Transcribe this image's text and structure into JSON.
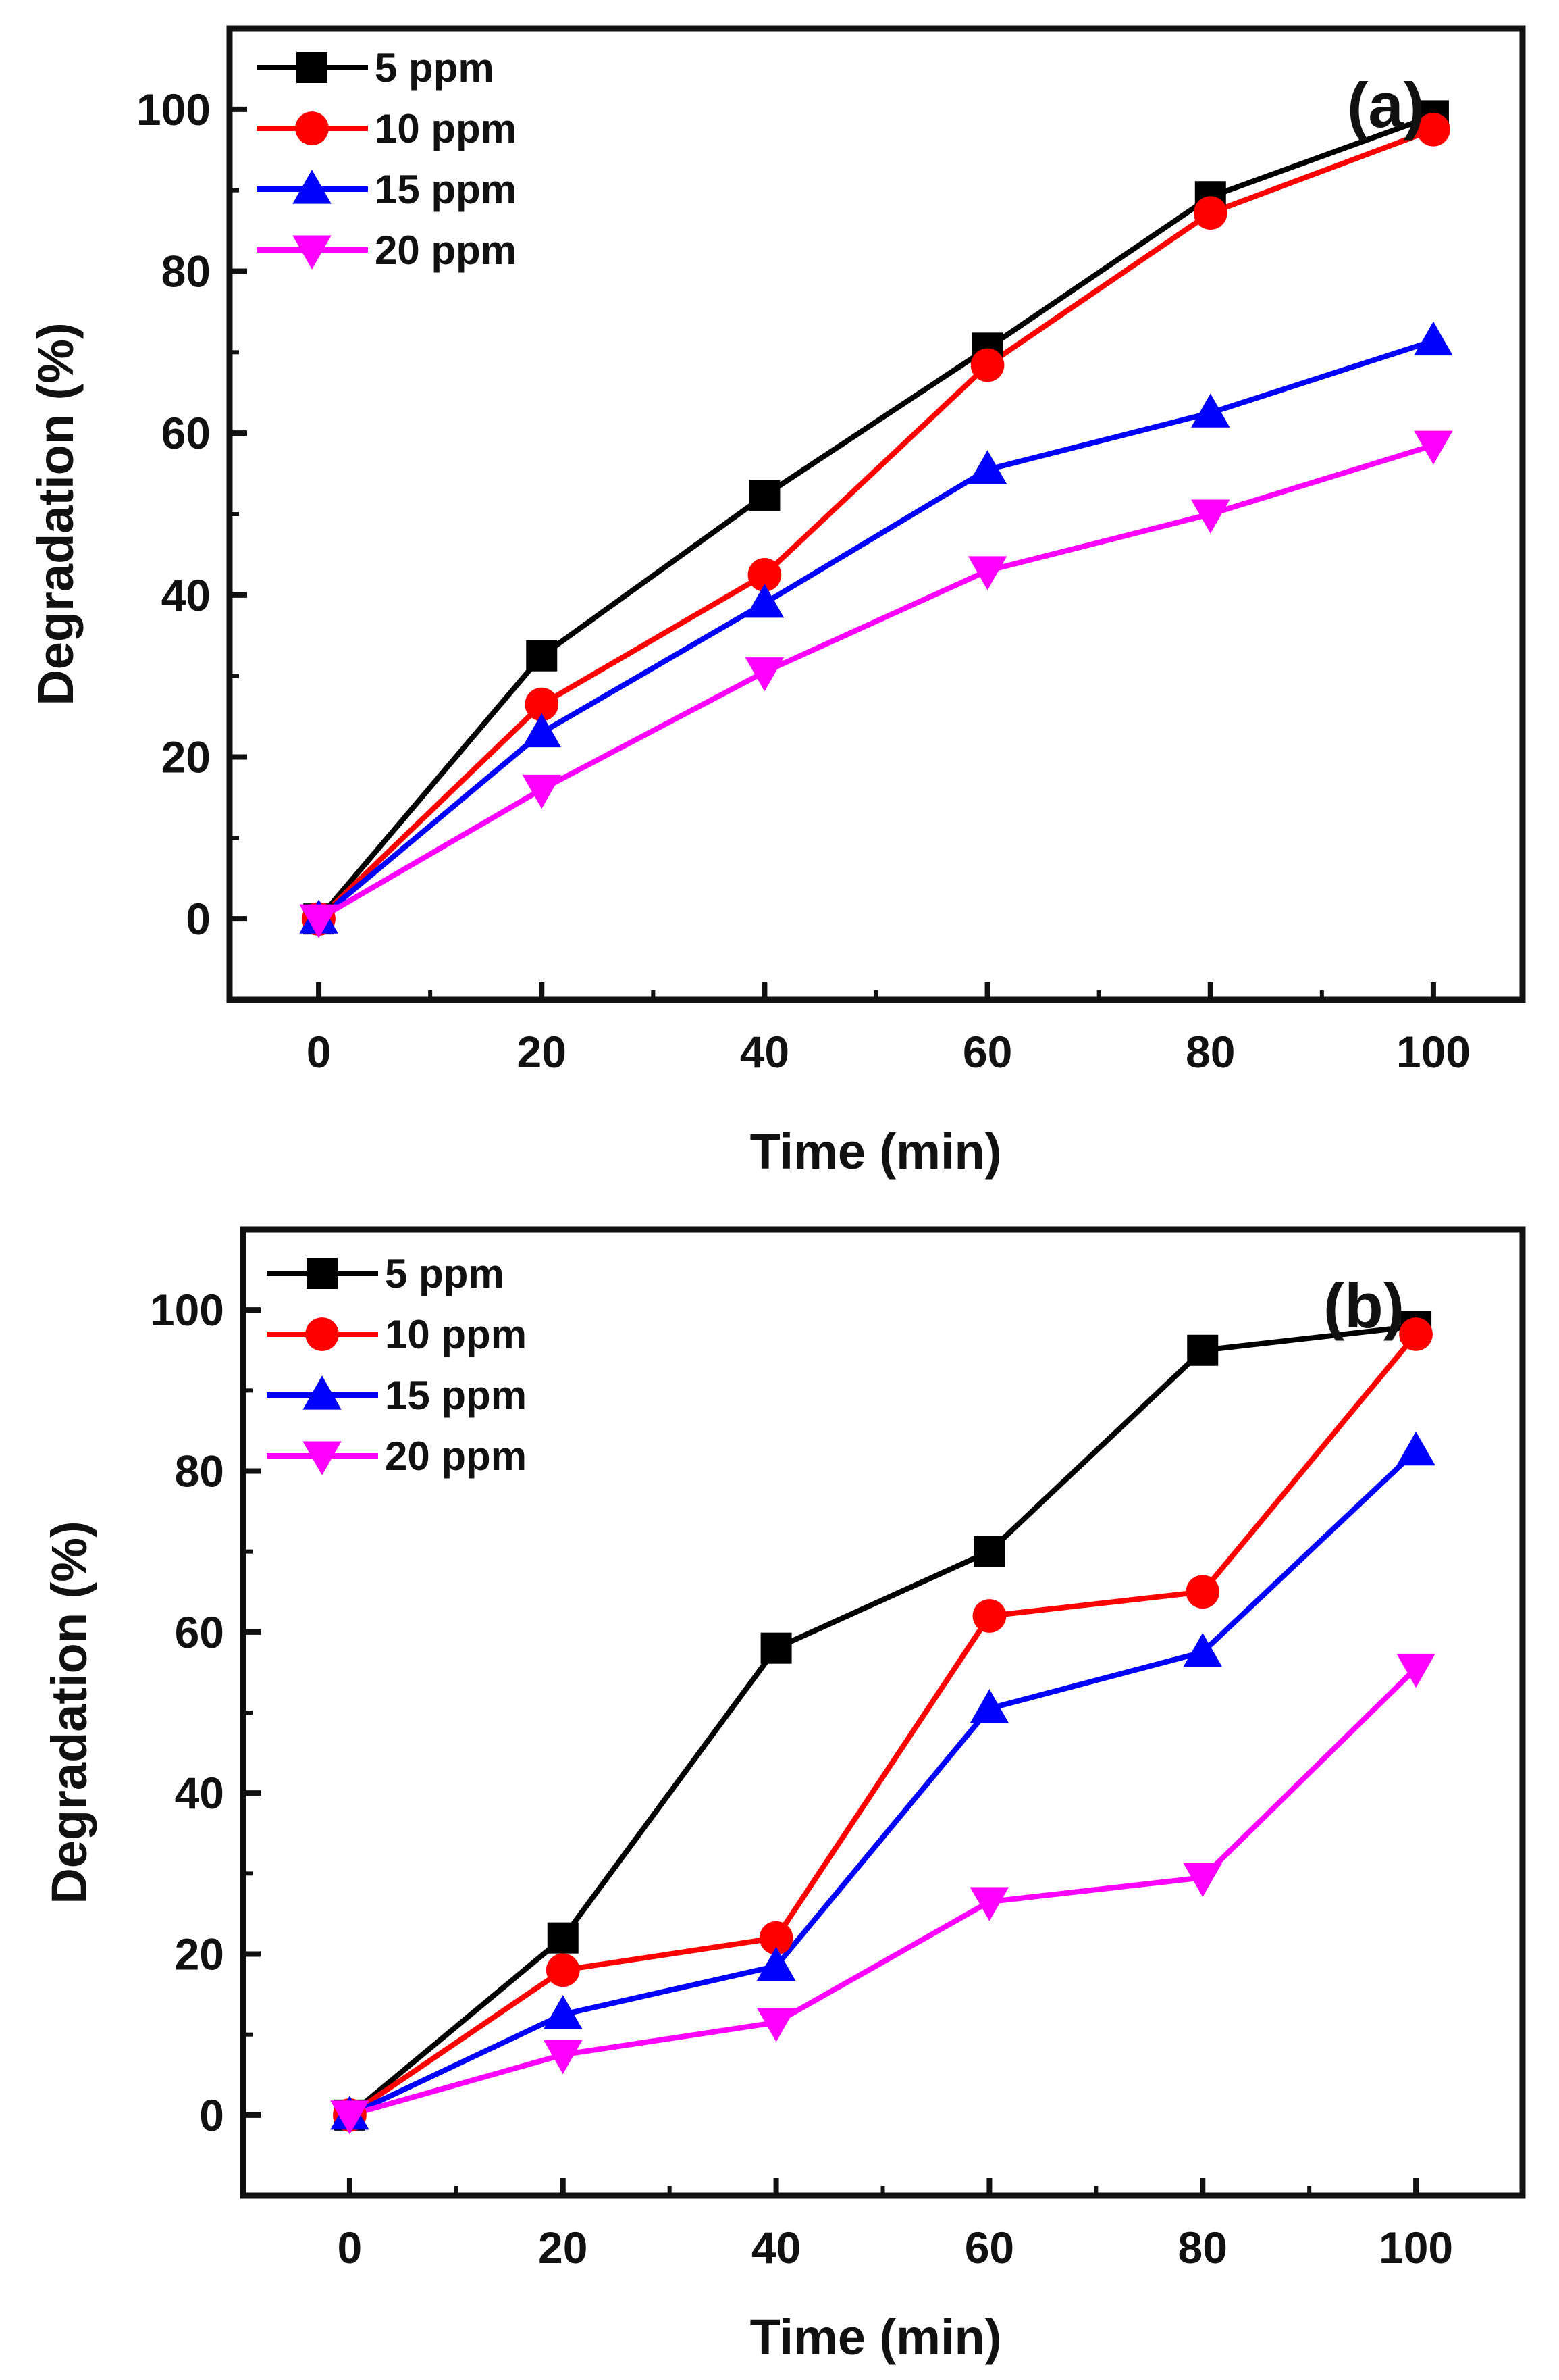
{
  "chart_data": [
    {
      "type": "line",
      "panel_label": "(a)",
      "xlabel": "Time (min)",
      "ylabel": "Degradation (%)",
      "xlim": [
        -8,
        108
      ],
      "ylim": [
        -10,
        110
      ],
      "xticks": [
        0,
        20,
        40,
        60,
        80,
        100
      ],
      "yticks": [
        0,
        20,
        40,
        60,
        80,
        100
      ],
      "legend_position": "top-left",
      "x": [
        0,
        20,
        40,
        60,
        80,
        100
      ],
      "series": [
        {
          "name": "5 ppm",
          "marker": "square",
          "color": "#000000",
          "values": [
            0,
            32.5,
            52.3,
            70.5,
            89.2,
            99.2
          ]
        },
        {
          "name": "10 ppm",
          "marker": "circle",
          "color": "#ff0000",
          "values": [
            0,
            26.5,
            42.5,
            68.4,
            87.2,
            97.5
          ]
        },
        {
          "name": "15 ppm",
          "marker": "triangle-up",
          "color": "#0000ff",
          "values": [
            0,
            23,
            39,
            55.5,
            62.5,
            71.4
          ]
        },
        {
          "name": "20 ppm",
          "marker": "triangle-down",
          "color": "#ff00ff",
          "values": [
            0,
            16,
            30.5,
            43,
            50,
            58.5
          ]
        }
      ]
    },
    {
      "type": "line",
      "panel_label": "(b)",
      "xlabel": "Time (min)",
      "ylabel": "Degradation (%)",
      "xlim": [
        -10,
        110
      ],
      "ylim": [
        -10,
        110
      ],
      "xticks": [
        0,
        20,
        40,
        60,
        80,
        100
      ],
      "yticks": [
        0,
        20,
        40,
        60,
        80,
        100
      ],
      "legend_position": "top-left",
      "x": [
        0,
        20,
        40,
        60,
        80,
        100
      ],
      "series": [
        {
          "name": "5 ppm",
          "marker": "square",
          "color": "#000000",
          "values": [
            0,
            22,
            58,
            70,
            95,
            98
          ]
        },
        {
          "name": "10 ppm",
          "marker": "circle",
          "color": "#ff0000",
          "values": [
            0,
            18,
            22,
            62,
            65,
            97
          ]
        },
        {
          "name": "15 ppm",
          "marker": "triangle-up",
          "color": "#0000ff",
          "values": [
            0,
            12.5,
            18.5,
            50.5,
            57.5,
            82.5
          ]
        },
        {
          "name": "20 ppm",
          "marker": "triangle-down",
          "color": "#ff00ff",
          "values": [
            0,
            7.5,
            11.5,
            26.5,
            29.5,
            55.5
          ]
        }
      ]
    }
  ]
}
